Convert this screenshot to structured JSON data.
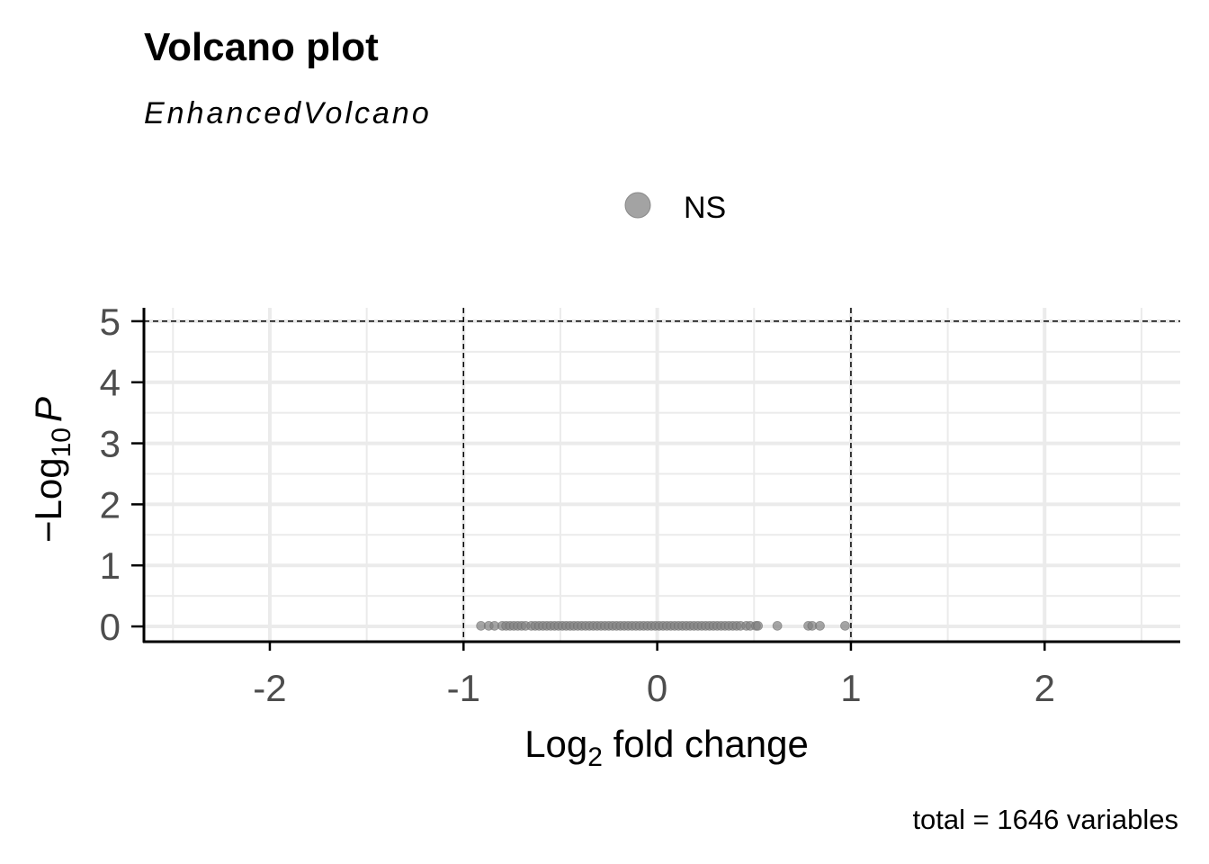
{
  "chart_data": {
    "type": "scatter",
    "title": "Volcano plot",
    "subtitle": "EnhancedVolcano",
    "xlabel_main": "Log",
    "xlabel_sub": "2",
    "xlabel_rest": " fold change",
    "ylabel_main": "−Log",
    "ylabel_sub": "10",
    "ylabel_var": "P",
    "caption": "total = 1646 variables",
    "xlim": [
      -2.65,
      2.7
    ],
    "ylim": [
      -0.25,
      5.22
    ],
    "x_ticks": [
      -2,
      -1,
      0,
      1,
      2
    ],
    "x_tick_labels": [
      "-2",
      "-1",
      "0",
      "1",
      "2"
    ],
    "y_ticks": [
      0,
      1,
      2,
      3,
      4,
      5
    ],
    "y_tick_labels": [
      "0",
      "1",
      "2",
      "3",
      "4",
      "5"
    ],
    "x_minor_ticks": [
      -2.5,
      -1.5,
      -0.5,
      0.5,
      1.5,
      2.5
    ],
    "y_minor_ticks": [
      0.5,
      1.5,
      2.5,
      3.5,
      4.5
    ],
    "grid": true,
    "cutoff_lines": {
      "fold_change": [
        -1,
        1
      ],
      "p_value_neglog10": 5
    },
    "legend": {
      "position": "top",
      "entries": [
        "NS"
      ]
    },
    "colors": {
      "NS": "#808080",
      "grid": "#ebebeb",
      "axis": "#000000"
    },
    "series": [
      {
        "name": "NS",
        "points_x": [
          -0.91,
          -0.87,
          -0.84,
          -0.8,
          -0.78,
          -0.76,
          -0.74,
          -0.72,
          -0.7,
          -0.68,
          -0.65,
          -0.63,
          -0.61,
          -0.59,
          -0.57,
          -0.55,
          -0.53,
          -0.51,
          -0.49,
          -0.47,
          -0.45,
          -0.43,
          -0.41,
          -0.39,
          -0.37,
          -0.35,
          -0.33,
          -0.31,
          -0.29,
          -0.27,
          -0.25,
          -0.23,
          -0.21,
          -0.19,
          -0.17,
          -0.15,
          -0.13,
          -0.11,
          -0.09,
          -0.07,
          -0.05,
          -0.03,
          -0.01,
          0.01,
          0.03,
          0.05,
          0.07,
          0.09,
          0.11,
          0.13,
          0.15,
          0.17,
          0.19,
          0.21,
          0.23,
          0.25,
          0.27,
          0.29,
          0.31,
          0.33,
          0.35,
          0.37,
          0.39,
          0.41,
          0.43,
          0.46,
          0.48,
          0.51,
          0.52,
          0.62,
          0.78,
          0.8,
          0.84,
          0.97
        ],
        "points_y": [
          0.01,
          0.01,
          0.01,
          0.01,
          0.01,
          0.01,
          0.01,
          0.01,
          0.01,
          0.01,
          0.01,
          0.01,
          0.01,
          0.01,
          0.01,
          0.01,
          0.01,
          0.01,
          0.01,
          0.01,
          0.01,
          0.01,
          0.01,
          0.01,
          0.01,
          0.01,
          0.01,
          0.01,
          0.01,
          0.01,
          0.01,
          0.01,
          0.01,
          0.01,
          0.01,
          0.01,
          0.01,
          0.01,
          0.01,
          0.01,
          0.01,
          0.01,
          0.01,
          0.01,
          0.01,
          0.01,
          0.01,
          0.01,
          0.01,
          0.01,
          0.01,
          0.01,
          0.01,
          0.01,
          0.01,
          0.01,
          0.01,
          0.01,
          0.01,
          0.01,
          0.01,
          0.01,
          0.01,
          0.01,
          0.01,
          0.01,
          0.01,
          0.01,
          0.01,
          0.01,
          0.01,
          0.01,
          0.01,
          0.01
        ]
      }
    ]
  }
}
